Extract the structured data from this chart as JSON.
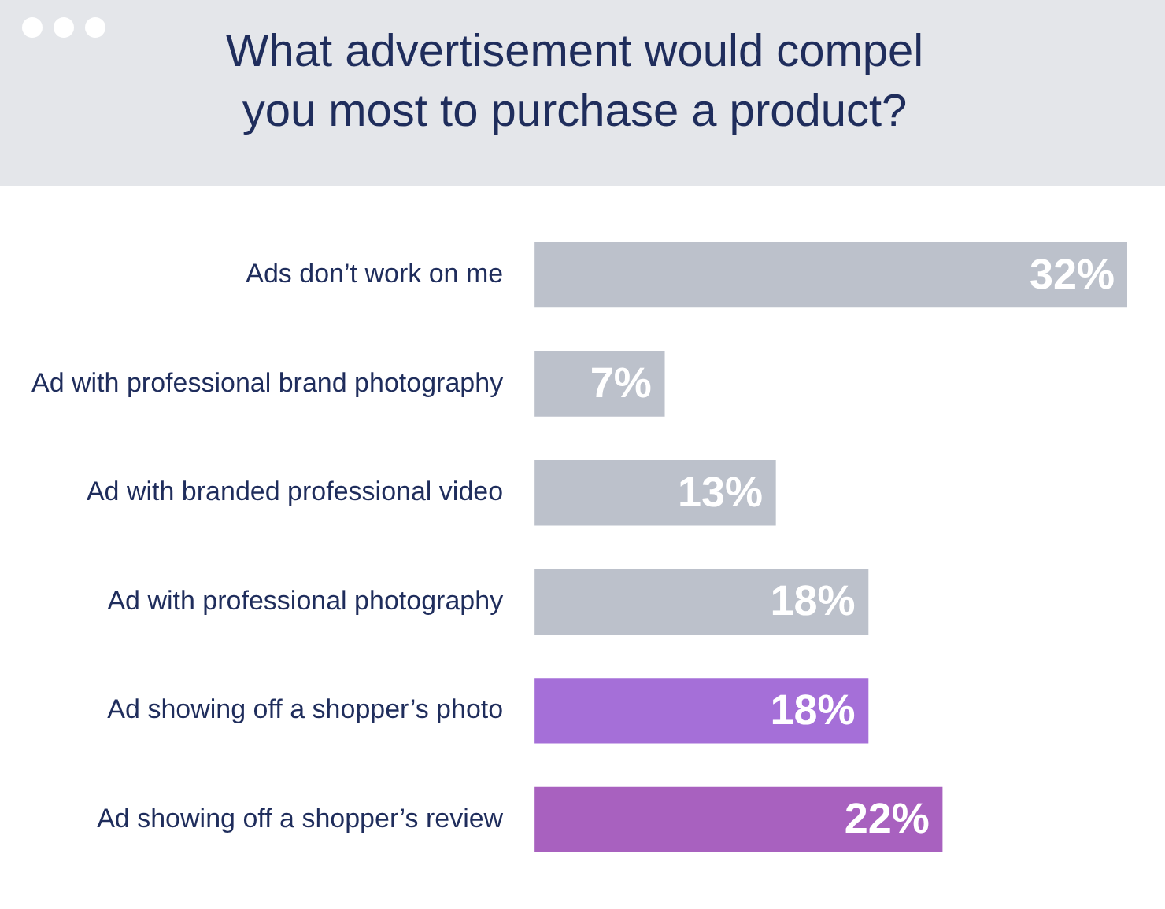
{
  "chart_data": {
    "type": "bar",
    "orientation": "horizontal",
    "title": "What advertisement would compel you most to purchase a product?",
    "categories": [
      "Ads don’t work on me",
      "Ad with professional brand photography",
      "Ad with branded professional video",
      "Ad with professional photography",
      "Ad showing off a shopper’s photo",
      "Ad showing off a shopper’s review"
    ],
    "values": [
      32,
      7,
      13,
      18,
      18,
      22
    ],
    "value_labels": [
      "32%",
      "7%",
      "13%",
      "18%",
      "18%",
      "22%"
    ],
    "colors": [
      "#bcc1cb",
      "#bcc1cb",
      "#bcc1cb",
      "#bcc1cb",
      "#a56fd8",
      "#a861bf"
    ],
    "legend": false
  }
}
